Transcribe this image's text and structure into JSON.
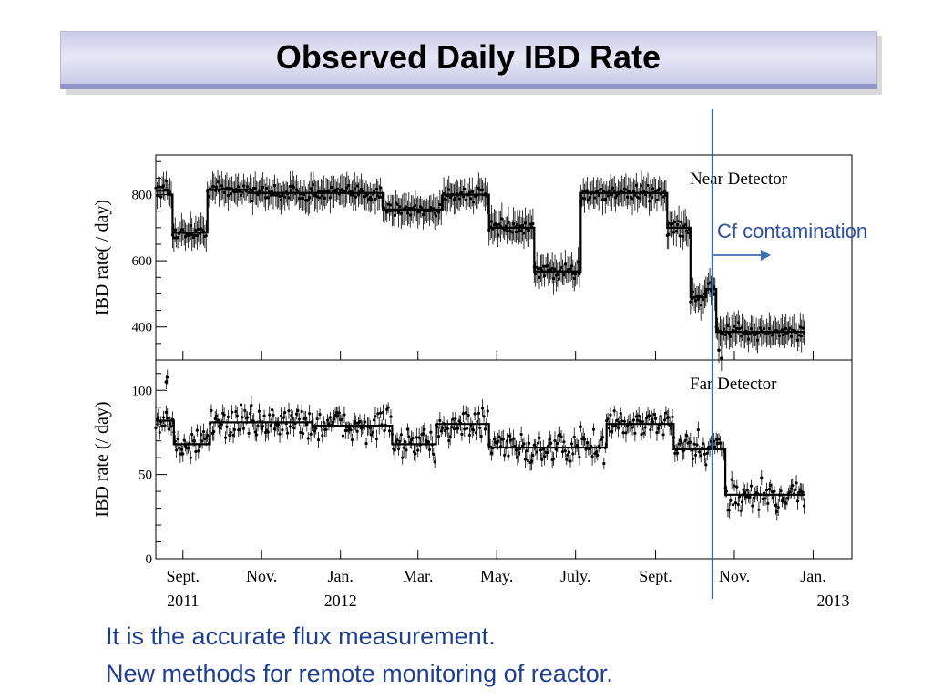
{
  "slide": {
    "title": "Observed Daily IBD Rate",
    "bullets": [
      "It is the accurate flux measurement.",
      "New methods for remote monitoring of reactor."
    ],
    "annotation": "Cf contamination"
  },
  "colors": {
    "title_bar": "#d4d6ee",
    "text_blue": "#1f3f91",
    "marker_line": "#3d6fb6",
    "data": "#000000"
  },
  "chart_data": [
    {
      "type": "scatter",
      "title": "Near Detector",
      "ylabel": "IBD rate( / day)",
      "ylim": [
        300,
        920
      ],
      "yticks": [
        400,
        600,
        800
      ],
      "x_start": "2011-08-11",
      "x_end": "2013-01-31",
      "grid": false,
      "fit_steps": [
        {
          "from": "2011-08-11",
          "to": "2011-08-20",
          "value": 812
        },
        {
          "from": "2011-08-20",
          "to": "2011-08-24",
          "value": 800
        },
        {
          "from": "2011-08-24",
          "to": "2011-09-20",
          "value": 685
        },
        {
          "from": "2011-09-20",
          "to": "2011-10-25",
          "value": 815
        },
        {
          "from": "2011-10-25",
          "to": "2012-02-03",
          "value": 805
        },
        {
          "from": "2012-02-03",
          "to": "2012-03-20",
          "value": 755
        },
        {
          "from": "2012-03-20",
          "to": "2012-04-25",
          "value": 800
        },
        {
          "from": "2012-04-25",
          "to": "2012-05-30",
          "value": 700
        },
        {
          "from": "2012-05-30",
          "to": "2012-07-05",
          "value": 568
        },
        {
          "from": "2012-07-05",
          "to": "2012-09-10",
          "value": 805
        },
        {
          "from": "2012-09-10",
          "to": "2012-09-28",
          "value": 700
        },
        {
          "from": "2012-09-28",
          "to": "2012-10-10",
          "value": 490
        },
        {
          "from": "2012-10-10",
          "to": "2012-10-18",
          "value": 515
        },
        {
          "from": "2012-10-18",
          "to": "2012-12-26",
          "value": 385
        }
      ],
      "spikes": [
        {
          "date": "2012-10-20",
          "value": 330
        },
        {
          "date": "2012-10-22",
          "value": 305
        }
      ],
      "data_end": "2012-12-26"
    },
    {
      "type": "scatter",
      "title": "Far Detector",
      "ylabel": "IBD rate (/ day)",
      "ylim": [
        0,
        118
      ],
      "yticks": [
        0,
        50,
        100
      ],
      "x_start": "2011-08-11",
      "x_end": "2013-01-31",
      "grid": false,
      "fit_steps": [
        {
          "from": "2011-08-11",
          "to": "2011-08-25",
          "value": 82
        },
        {
          "from": "2011-08-25",
          "to": "2011-09-22",
          "value": 68
        },
        {
          "from": "2011-09-22",
          "to": "2011-12-10",
          "value": 81
        },
        {
          "from": "2011-12-10",
          "to": "2012-02-10",
          "value": 79
        },
        {
          "from": "2012-02-10",
          "to": "2012-03-15",
          "value": 68
        },
        {
          "from": "2012-03-15",
          "to": "2012-04-25",
          "value": 80
        },
        {
          "from": "2012-04-25",
          "to": "2012-07-25",
          "value": 66
        },
        {
          "from": "2012-07-25",
          "to": "2012-09-15",
          "value": 80
        },
        {
          "from": "2012-09-15",
          "to": "2012-10-25",
          "value": 65
        },
        {
          "from": "2012-10-25",
          "to": "2012-12-26",
          "value": 38
        }
      ],
      "spikes": [
        {
          "date": "2011-08-19",
          "value": 105
        },
        {
          "date": "2011-08-20",
          "value": 108
        }
      ],
      "data_end": "2012-12-26"
    }
  ],
  "x_axis": {
    "ticks": [
      {
        "date": "2011-09-01",
        "label": "Sept.",
        "year": "2011"
      },
      {
        "date": "2011-11-01",
        "label": "Nov.",
        "year": ""
      },
      {
        "date": "2012-01-01",
        "label": "Jan.",
        "year": "2012"
      },
      {
        "date": "2012-03-01",
        "label": "Mar.",
        "year": ""
      },
      {
        "date": "2012-05-01",
        "label": "May.",
        "year": ""
      },
      {
        "date": "2012-07-01",
        "label": "July.",
        "year": ""
      },
      {
        "date": "2012-09-01",
        "label": "Sept.",
        "year": ""
      },
      {
        "date": "2012-11-01",
        "label": "Nov.",
        "year": ""
      },
      {
        "date": "2013-01-01",
        "label": "Jan.",
        "year": "2013"
      }
    ],
    "marker_date": "2012-10-15"
  }
}
